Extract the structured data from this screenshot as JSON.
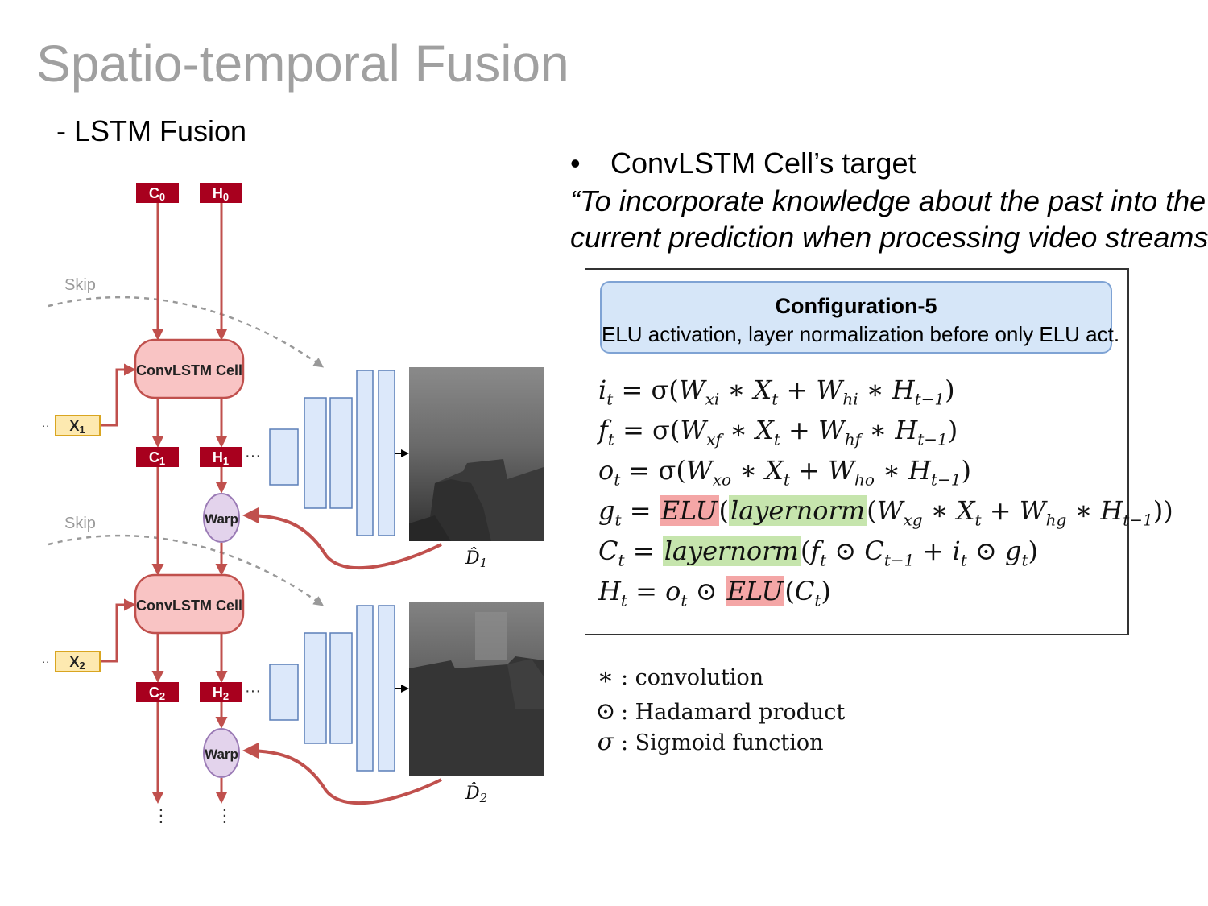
{
  "slide": {
    "title": "Spatio-temporal Fusion",
    "subtitle": "- LSTM Fusion",
    "bullet_marker": "•",
    "bullet_text": "ConvLSTM Cell’s target",
    "quote_line1": "“To incorporate knowledge about the past into the",
    "quote_line2": "current prediction when processing video streams"
  },
  "diagram": {
    "c0": "C",
    "c0_sub": "0",
    "h0": "H",
    "h0_sub": "0",
    "c1": "C",
    "c1_sub": "1",
    "h1": "H",
    "h1_sub": "1",
    "c2": "C",
    "c2_sub": "2",
    "h2": "H",
    "h2_sub": "2",
    "x1": "X",
    "x1_sub": "1",
    "x2": "X",
    "x2_sub": "2",
    "cell_label": "ConvLSTM Cell",
    "warp_label": "Warp",
    "skip_label": "Skip",
    "d1": "D̂",
    "d1_sub": "1",
    "d2": "D̂",
    "d2_sub": "2",
    "ellipsis": "···",
    "vdots": "⋮",
    "colors": {
      "state_box": "#a8001e",
      "input_box": "#fde9b0",
      "cell_fill": "#f9c4c4",
      "warp_fill": "#e3d3ec",
      "arrow": "#c0504d",
      "layer_fill": "#dce8fa",
      "layer_stroke": "#5b7fb8"
    }
  },
  "config": {
    "title": "Configuration-5",
    "description": "ELU activation, layer normalization before only ELU act."
  },
  "equations": {
    "eq1": "i_t = σ(W_xi ∗ X_t + W_hi ∗ H_t−1)",
    "eq2": "f_t = σ(W_xf ∗ X_t + W_hf ∗ H_t−1)",
    "eq3": "o_t = σ(W_xo ∗ X_t + W_ho ∗ H_t−1)",
    "eq4": "g_t = ELU(layernorm(W_xg ∗ X_t + W_hg ∗ H_t−1))",
    "eq5": "C_t = layernorm(f_t ⊙ C_t−1 + i_t ⊙ g_t)",
    "eq6": "H_t = o_t ⊙ ELU(C_t)",
    "elu": "ELU",
    "layernorm": "layernorm",
    "highlight_red": "#f4a6a6",
    "highlight_green": "#c6e5ad"
  },
  "legend": {
    "conv_symbol": "∗",
    "conv_text": ": convolution",
    "hadamard_symbol": "⊙",
    "hadamard_text": ": Hadamard product",
    "sigma_symbol": "σ",
    "sigma_text": ": Sigmoid function"
  }
}
